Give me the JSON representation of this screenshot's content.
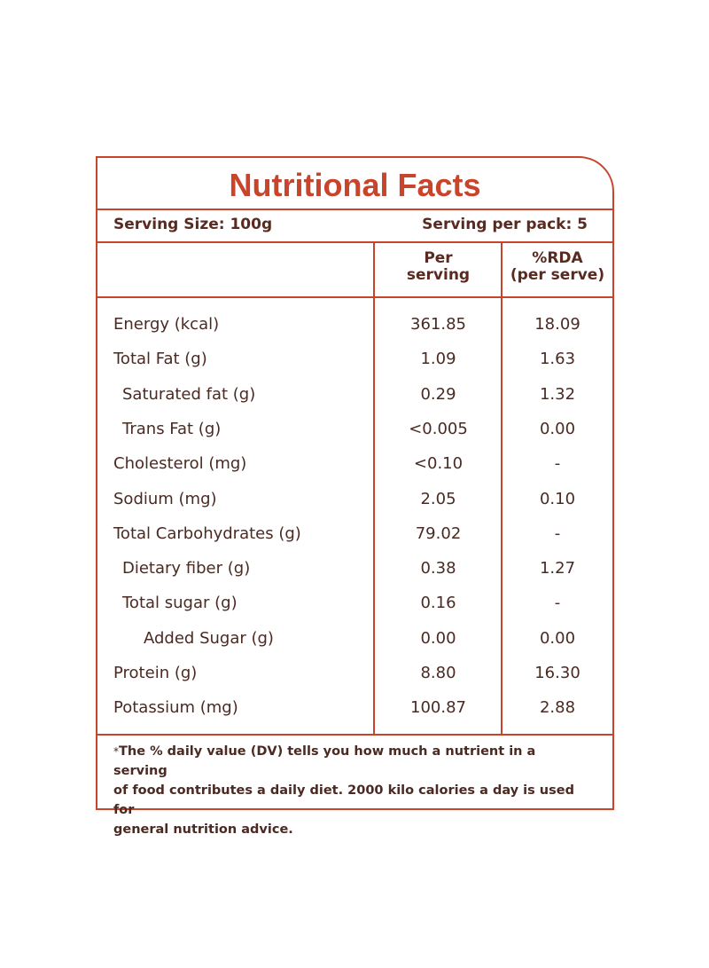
{
  "title": "Nutritional Facts",
  "serving_size": "Serving Size: 100g",
  "serving_per_pack": "Serving per pack: 5",
  "columns": {
    "per_serving": [
      "Per",
      "serving"
    ],
    "rda": [
      "%RDA",
      "(per serve)"
    ]
  },
  "rows": [
    {
      "name": "Energy (kcal)",
      "indent": 0,
      "per_serving": "361.85",
      "rda": "18.09"
    },
    {
      "name": "Total Fat (g)",
      "indent": 0,
      "per_serving": "1.09",
      "rda": "1.63"
    },
    {
      "name": "Saturated fat (g)",
      "indent": 1,
      "per_serving": "0.29",
      "rda": "1.32"
    },
    {
      "name": "Trans Fat (g)",
      "indent": 1,
      "per_serving": "<0.005",
      "rda": "0.00"
    },
    {
      "name": "Cholesterol (mg)",
      "indent": 0,
      "per_serving": "<0.10",
      "rda": "-"
    },
    {
      "name": "Sodium (mg)",
      "indent": 0,
      "per_serving": "2.05",
      "rda": "0.10"
    },
    {
      "name": "Total Carbohydrates  (g)",
      "indent": 0,
      "per_serving": "79.02",
      "rda": "-"
    },
    {
      "name": "Dietary fiber (g)",
      "indent": 1,
      "per_serving": "0.38",
      "rda": "1.27"
    },
    {
      "name": "Total sugar (g)",
      "indent": 1,
      "per_serving": "0.16",
      "rda": "-"
    },
    {
      "name": "Added Sugar (g)",
      "indent": 2,
      "per_serving": "0.00",
      "rda": "0.00"
    },
    {
      "name": "Protein (g)",
      "indent": 0,
      "per_serving": "8.80",
      "rda": "16.30"
    },
    {
      "name": "Potassium (mg)",
      "indent": 0,
      "per_serving": "100.87",
      "rda": "2.88"
    }
  ],
  "footnote": {
    "star": "*",
    "line1": "The % daily value (DV) tells you how much a nutrient in a serving",
    "line2": "of food contributes a daily diet. 2000 kilo calories a day is used for",
    "line3": "general nutrition advice."
  },
  "colors": {
    "border": "#c8452c",
    "title": "#c8452c",
    "text": "#4a2a22"
  }
}
